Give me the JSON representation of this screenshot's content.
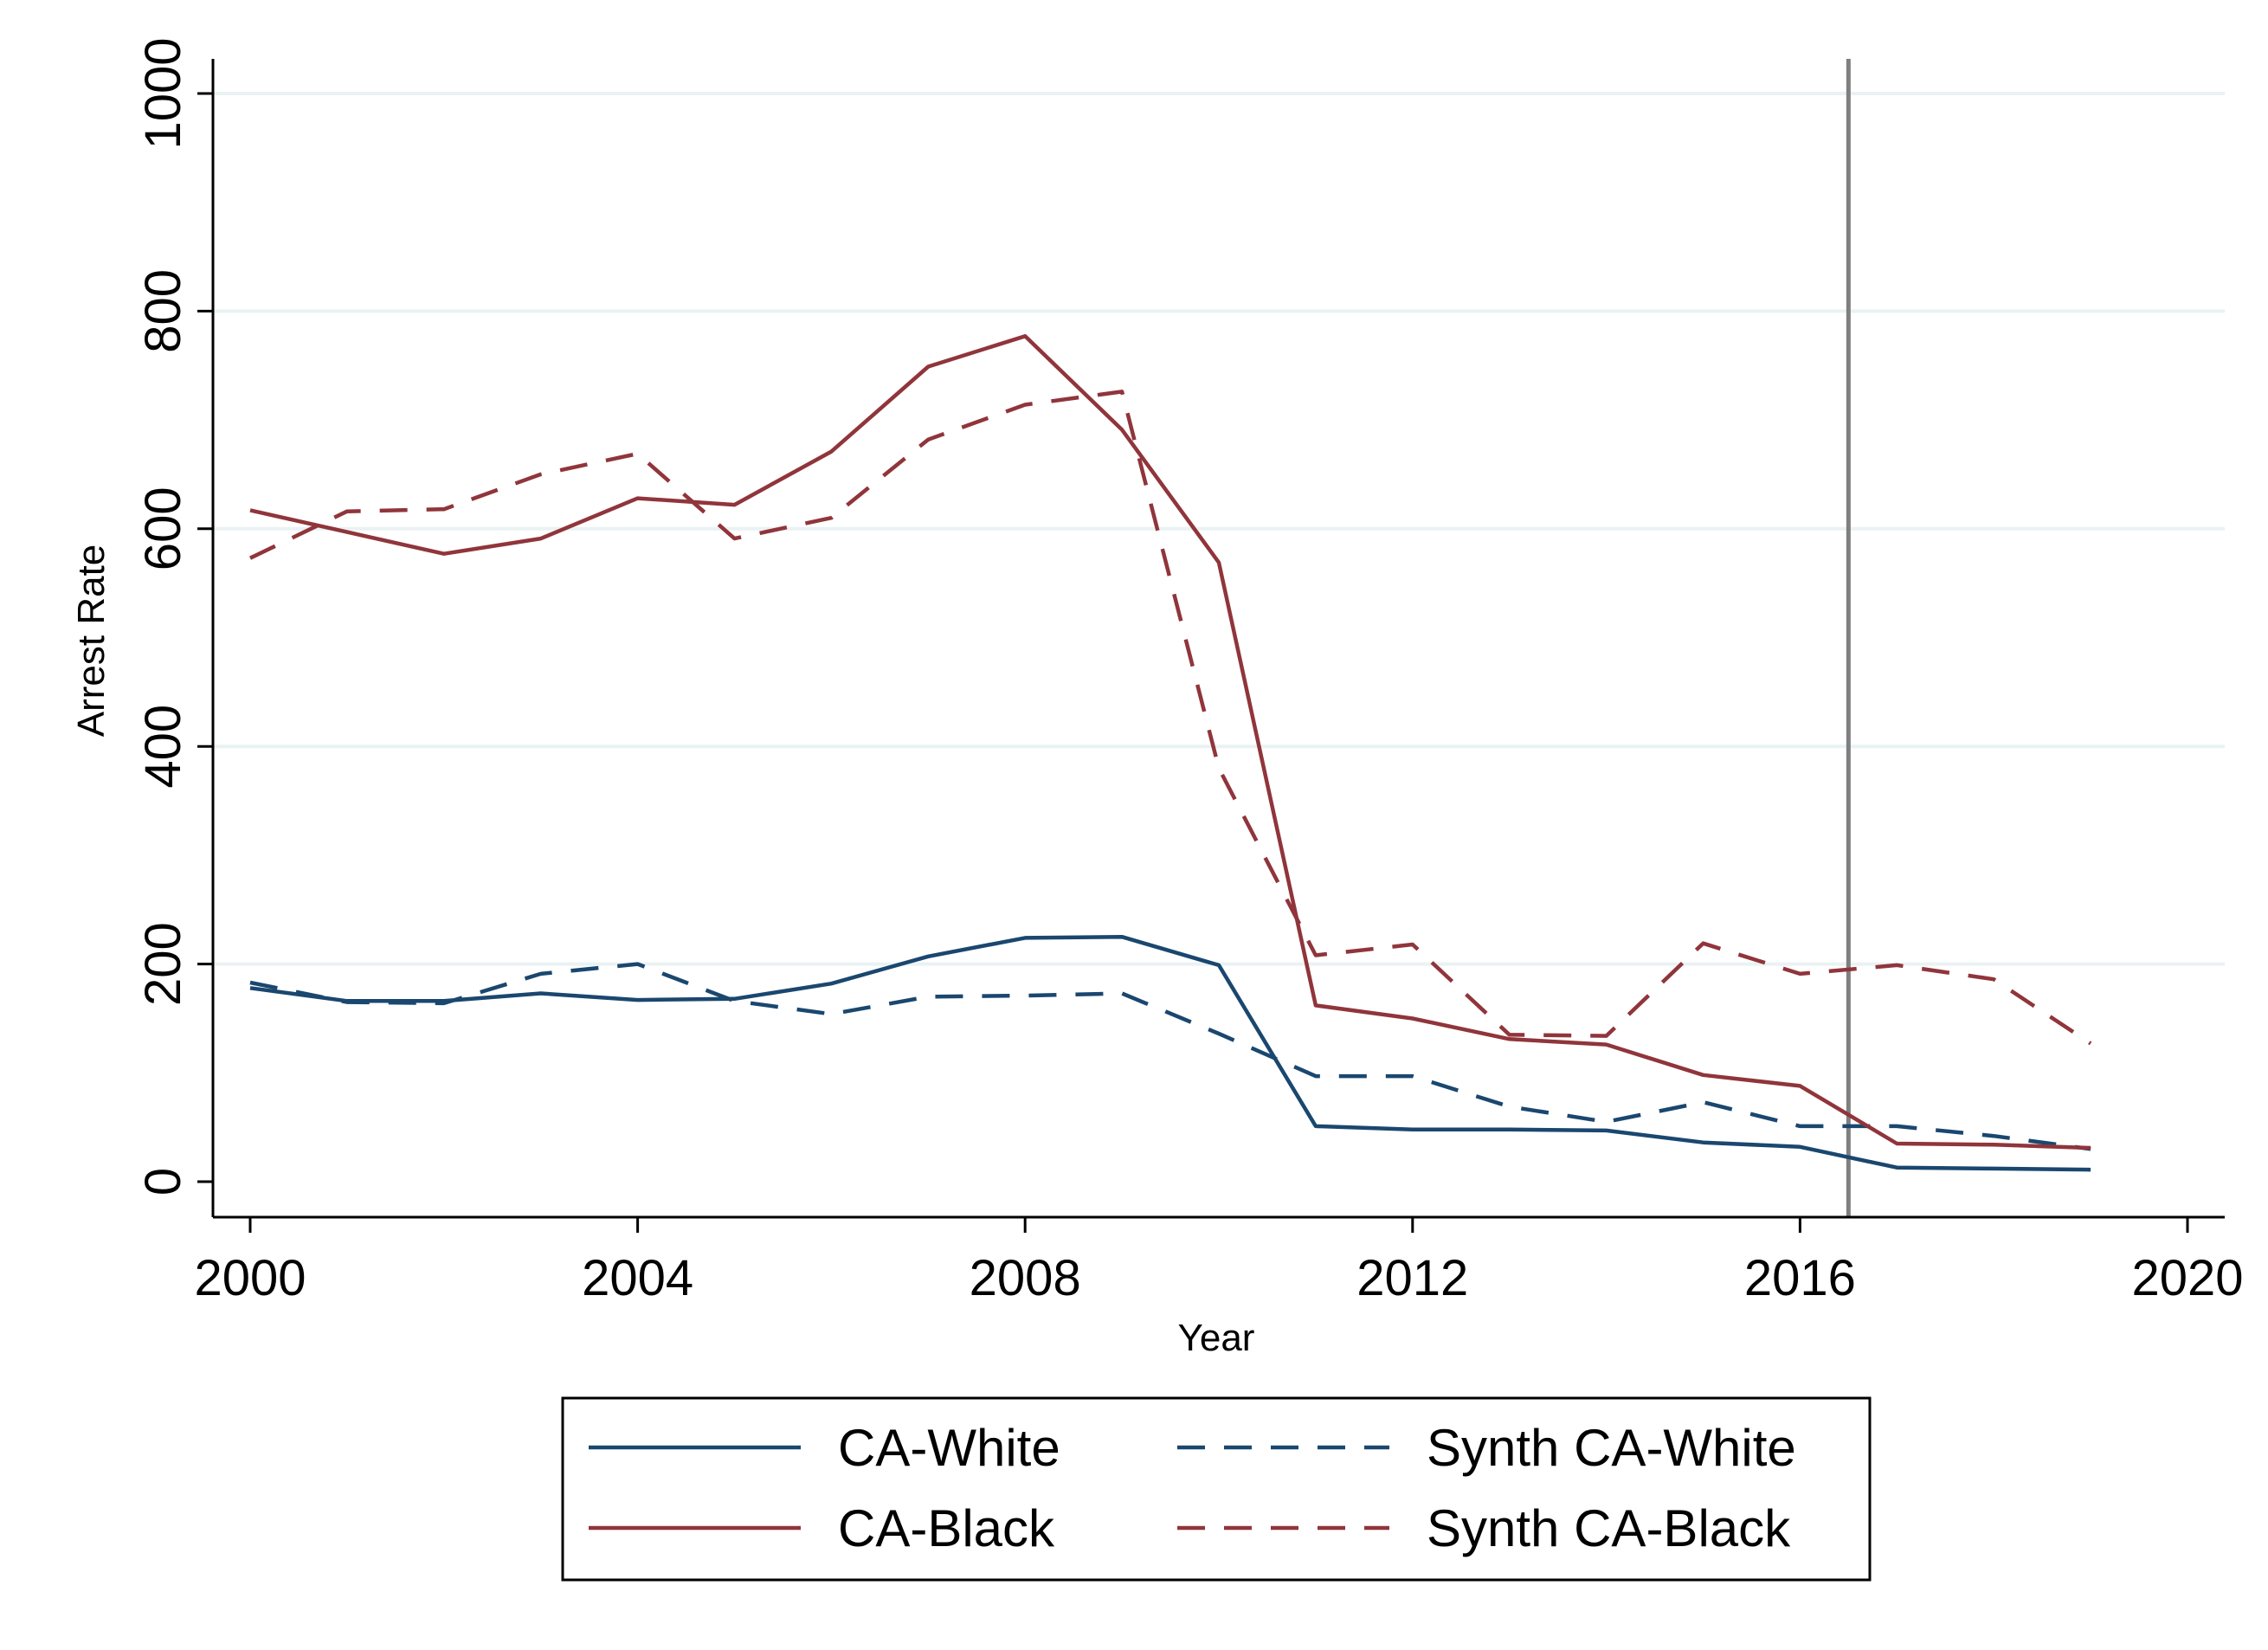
{
  "chart_data": {
    "type": "line",
    "xlabel": "Year",
    "ylabel": "Arrest Rate",
    "xlim": [
      2000,
      2020
    ],
    "ylim": [
      0,
      1000
    ],
    "xticks": [
      2000,
      2004,
      2008,
      2012,
      2016,
      2020
    ],
    "yticks": [
      0,
      200,
      400,
      600,
      800,
      1000
    ],
    "grid": "horizontal",
    "vline": 2016.5,
    "legend_position": "bottom",
    "x": [
      2000,
      2001,
      2002,
      2003,
      2004,
      2005,
      2006,
      2007,
      2008,
      2009,
      2010,
      2011,
      2012,
      2013,
      2014,
      2015,
      2016,
      2017,
      2018,
      2019
    ],
    "series": [
      {
        "name": "CA-White",
        "color": "#1a476f",
        "dash": "solid",
        "values": [
          178,
          166,
          166,
          173,
          167,
          168,
          182,
          207,
          224,
          225,
          199,
          51,
          48,
          48,
          47,
          36,
          32,
          13,
          12,
          11
        ]
      },
      {
        "name": "Synth CA-White",
        "color": "#1a476f",
        "dash": "dashed",
        "values": [
          183,
          165,
          164,
          191,
          200,
          166,
          154,
          170,
          171,
          173,
          136,
          97,
          97,
          69,
          55,
          73,
          51,
          51,
          42,
          30
        ]
      },
      {
        "name": "CA-Black",
        "color": "#90353b",
        "dash": "solid",
        "values": [
          617,
          597,
          577,
          591,
          628,
          622,
          671,
          749,
          777,
          691,
          569,
          162,
          150,
          131,
          126,
          98,
          88,
          35,
          34,
          31
        ]
      },
      {
        "name": "Synth CA-Black",
        "color": "#90353b",
        "dash": "dashed",
        "values": [
          573,
          616,
          618,
          650,
          669,
          591,
          610,
          682,
          714,
          726,
          380,
          208,
          218,
          135,
          134,
          219,
          191,
          199,
          186,
          127
        ]
      }
    ]
  }
}
